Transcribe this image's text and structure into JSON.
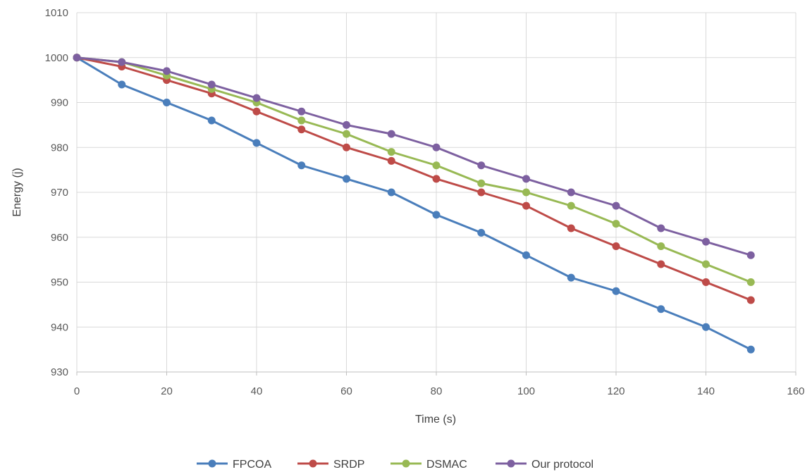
{
  "chart_data": {
    "type": "line",
    "xlabel": "Time (s)",
    "ylabel": "Energy (j)",
    "xlim": [
      0,
      160
    ],
    "ylim": [
      930,
      1010
    ],
    "x_ticks": [
      0,
      20,
      40,
      60,
      80,
      100,
      120,
      140,
      160
    ],
    "y_ticks": [
      930,
      940,
      950,
      960,
      970,
      980,
      990,
      1000,
      1010
    ],
    "x": [
      0,
      10,
      20,
      30,
      40,
      50,
      60,
      70,
      80,
      90,
      100,
      110,
      120,
      130,
      140,
      150
    ],
    "grid": true,
    "legend_position": "bottom",
    "series": [
      {
        "name": "FPCOA",
        "color": "#4a7ebb",
        "values": [
          1000,
          994,
          990,
          986,
          981,
          976,
          973,
          970,
          965,
          961,
          956,
          951,
          948,
          944,
          940,
          935
        ]
      },
      {
        "name": "SRDP",
        "color": "#be4b48",
        "values": [
          1000,
          998,
          995,
          992,
          988,
          984,
          980,
          977,
          973,
          970,
          967,
          962,
          958,
          954,
          950,
          946
        ]
      },
      {
        "name": "DSMAC",
        "color": "#98b954",
        "values": [
          1000,
          999,
          996,
          993,
          990,
          986,
          983,
          979,
          976,
          972,
          970,
          967,
          963,
          958,
          954,
          950
        ]
      },
      {
        "name": "Our protocol",
        "color": "#7d60a0",
        "values": [
          1000,
          999,
          997,
          994,
          991,
          988,
          985,
          983,
          980,
          976,
          973,
          970,
          967,
          962,
          959,
          956
        ]
      }
    ]
  }
}
